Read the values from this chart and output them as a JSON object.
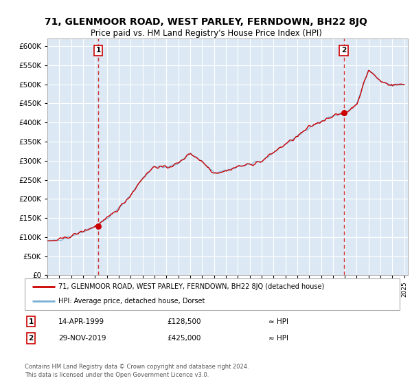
{
  "title1": "71, GLENMOOR ROAD, WEST PARLEY, FERNDOWN, BH22 8JQ",
  "title2": "Price paid vs. HM Land Registry's House Price Index (HPI)",
  "ylim": [
    0,
    620000
  ],
  "yticks": [
    0,
    50000,
    100000,
    150000,
    200000,
    250000,
    300000,
    350000,
    400000,
    450000,
    500000,
    550000,
    600000
  ],
  "bg_color": "#dce9f5",
  "grid_color": "#ffffff",
  "line_color_red": "#cc0000",
  "line_color_blue": "#7bafd4",
  "marker_color": "#cc0000",
  "dashed_color": "#cc0000",
  "sale1_year": 1999.28,
  "sale1_value": 128500,
  "sale2_year": 2019.91,
  "sale2_value": 425000,
  "legend_line1": "71, GLENMOOR ROAD, WEST PARLEY, FERNDOWN, BH22 8JQ (detached house)",
  "legend_line2": "HPI: Average price, detached house, Dorset",
  "note1_num": "1",
  "note1_date": "14-APR-1999",
  "note1_price": "£128,500",
  "note1_hpi": "≈ HPI",
  "note2_num": "2",
  "note2_date": "29-NOV-2019",
  "note2_price": "£425,000",
  "note2_hpi": "≈ HPI",
  "footer": "Contains HM Land Registry data © Crown copyright and database right 2024.\nThis data is licensed under the Open Government Licence v3.0.",
  "hpi_anchors_x": [
    1995,
    1996,
    1997,
    1998,
    1999,
    2000,
    2001,
    2002,
    2003,
    2004,
    2005,
    2006,
    2007,
    2008,
    2009,
    2010,
    2011,
    2012,
    2013,
    2014,
    2015,
    2016,
    2017,
    2018,
    2019,
    2020,
    2021,
    2022,
    2023,
    2024,
    2025
  ],
  "hpi_anchors_y": [
    88000,
    93000,
    103000,
    115000,
    128000,
    148000,
    175000,
    210000,
    255000,
    285000,
    282000,
    293000,
    320000,
    298000,
    268000,
    273000,
    285000,
    290000,
    298000,
    322000,
    343000,
    363000,
    388000,
    403000,
    418000,
    423000,
    448000,
    538000,
    508000,
    498000,
    500000
  ]
}
